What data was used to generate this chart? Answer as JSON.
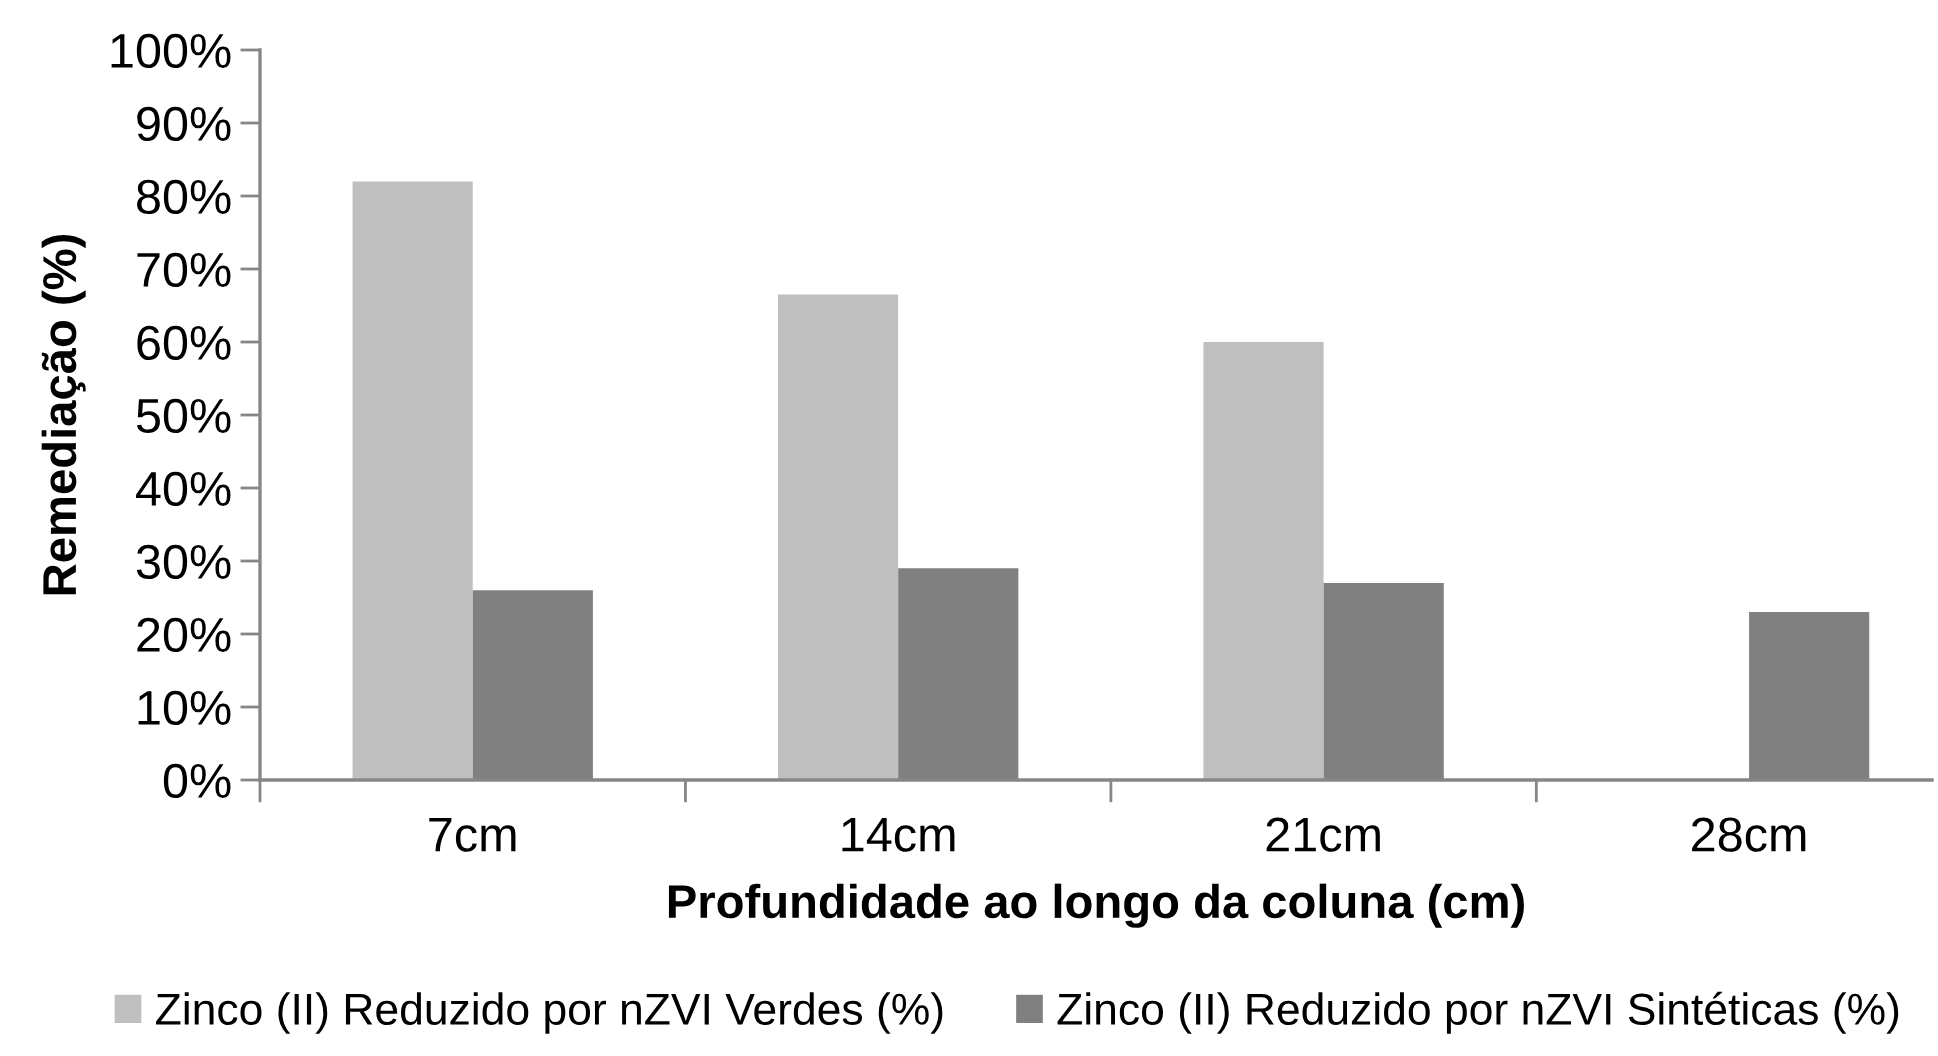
{
  "chart_data": {
    "type": "bar",
    "xlabel": "Profundidade ao longo da coluna (cm)",
    "ylabel": "Remediação (%)",
    "categories": [
      "7cm",
      "14cm",
      "21cm",
      "28cm"
    ],
    "series": [
      {
        "name": "Zinco (II) Reduzido por nZVI Verdes (%)",
        "color": "#bfbfbf",
        "values": [
          82,
          66.5,
          60,
          null
        ]
      },
      {
        "name": "Zinco (II) Reduzido por nZVI Sintéticas (%)",
        "color": "#808080",
        "values": [
          26,
          29,
          27,
          23
        ]
      }
    ],
    "ylim": [
      0,
      100
    ],
    "yticks": [
      {
        "value": 0,
        "label": "0%"
      },
      {
        "value": 10,
        "label": "10%"
      },
      {
        "value": 20,
        "label": "20%"
      },
      {
        "value": 30,
        "label": "30%"
      },
      {
        "value": 40,
        "label": "40%"
      },
      {
        "value": 50,
        "label": "50%"
      },
      {
        "value": 60,
        "label": "60%"
      },
      {
        "value": 70,
        "label": "70%"
      },
      {
        "value": 80,
        "label": "80%"
      },
      {
        "value": 90,
        "label": "90%"
      },
      {
        "value": 100,
        "label": "100%"
      }
    ],
    "legend": "bottom"
  }
}
